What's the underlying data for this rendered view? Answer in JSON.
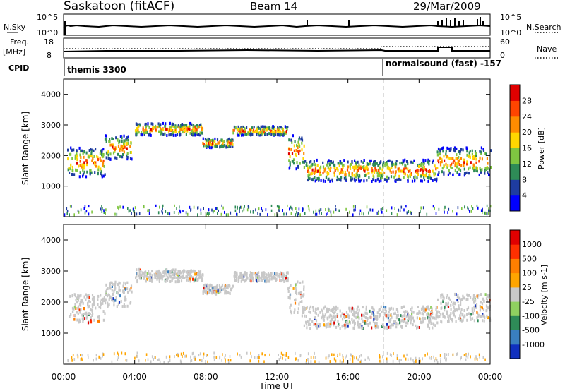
{
  "header": {
    "station": "Saskatoon (fitACF)",
    "beam": "Beam 14",
    "date": "29/Mar/2009"
  },
  "top_panels": {
    "nsky_label": "N.Sky",
    "nsky_ticks": [
      "10^5",
      "10^0"
    ],
    "nsearch_label": "N.Search",
    "nsearch_ticks": [
      "10^5",
      "10^0"
    ],
    "freq_label": "Freq.",
    "freq_unit": "[MHz]",
    "freq_ticks": [
      "18",
      "8"
    ],
    "nave_label": "Nave",
    "nave_ticks": [
      "60",
      "0"
    ],
    "cpid_label": "CPID",
    "cpid_segments": [
      {
        "label": "themis 3300",
        "start_hour": 0
      },
      {
        "label": "normalsound (fast) -157",
        "start_hour": 18
      }
    ]
  },
  "chart_data": [
    {
      "type": "heatmap",
      "name": "power",
      "ylabel": "Slant Range [km]",
      "ylim": [
        0,
        4500
      ],
      "yticks": [
        1000,
        2000,
        3000,
        4000
      ],
      "xlim": [
        0,
        24
      ],
      "colorbar": {
        "label": "Power [dB]",
        "ticks": [
          "4",
          "8",
          "12",
          "16",
          "20",
          "24",
          "28"
        ],
        "colors": [
          "#0000ff",
          "#1e3ca0",
          "#2e8b57",
          "#7fc641",
          "#ffd700",
          "#ff8c00",
          "#ff4500",
          "#e00000"
        ]
      },
      "bands": [
        {
          "t": [
            0.2,
            2.3
          ],
          "r": [
            1350,
            2300
          ]
        },
        {
          "t": [
            2.3,
            3.8
          ],
          "r": [
            1900,
            2700
          ]
        },
        {
          "t": [
            4.0,
            7.8
          ],
          "r": [
            2700,
            3100
          ]
        },
        {
          "t": [
            7.8,
            9.5
          ],
          "r": [
            2300,
            2600
          ]
        },
        {
          "t": [
            9.5,
            12.6
          ],
          "r": [
            2700,
            3000
          ]
        },
        {
          "t": [
            12.6,
            13.5
          ],
          "r": [
            1600,
            2700
          ]
        },
        {
          "t": [
            13.5,
            21.0
          ],
          "r": [
            1200,
            1900
          ]
        },
        {
          "t": [
            21.0,
            24.0
          ],
          "r": [
            1400,
            2300
          ]
        }
      ]
    },
    {
      "type": "heatmap",
      "name": "velocity",
      "ylabel": "Slant Range [km]",
      "xlabel": "Time UT",
      "ylim": [
        0,
        4500
      ],
      "yticks": [
        1000,
        2000,
        3000,
        4000
      ],
      "xlim": [
        0,
        24
      ],
      "xticks": [
        "00:00",
        "04:00",
        "08:00",
        "12:00",
        "16:00",
        "20:00",
        "00:00"
      ],
      "colorbar": {
        "label": "Velocity [m s-1]",
        "ticks": [
          "1000",
          "500",
          "100",
          "25",
          "-25",
          "-100",
          "-500",
          "-1000"
        ],
        "colors": [
          "#1030c0",
          "#3a7fc0",
          "#2e8b57",
          "#8fd060",
          "#c8c8c8",
          "#ffa500",
          "#ff7f00",
          "#ff3000",
          "#e00000"
        ]
      }
    }
  ]
}
